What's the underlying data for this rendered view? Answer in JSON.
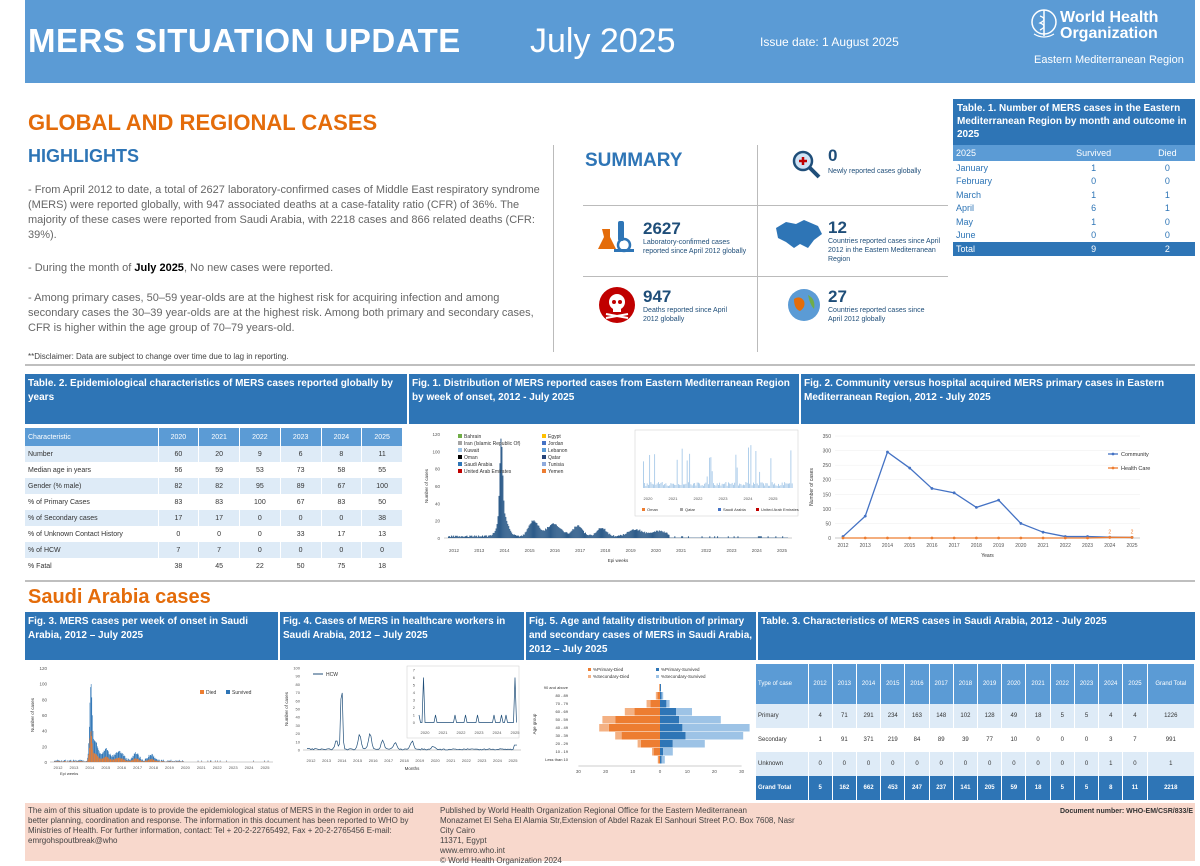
{
  "header": {
    "title": "MERS SITUATION UPDATE",
    "month": "July 2025",
    "issue_date": "Issue date: 1 August 2025",
    "org_line1": "World Health",
    "org_line2": "Organization",
    "region": "Eastern Mediterranean Region"
  },
  "highlights": {
    "section_title": "GLOBAL AND REGIONAL CASES",
    "title": "HIGHLIGHTS",
    "p1": "- From April 2012 to date, a total of 2627 laboratory-confirmed cases of Middle East respiratory syndrome (MERS) were reported globally, with 947 associated deaths at a case-fatality ratio (CFR) of 36%. The majority of these cases were reported from Saudi Arabia, with 2218 cases and 866 related deaths (CFR: 39%).",
    "p2_pre": "- During the month of ",
    "p2_bold": "July 2025",
    "p2_post": ", No new cases were reported.",
    "p3": "- Among primary cases, 50–59 year-olds are at the highest risk for acquiring infection and among secondary cases the 30–39 year-olds are at the highest risk. Among both primary and secondary cases, CFR is higher within the age group of 70–79 years-old.",
    "disclaimer": "**Disclaimer: Data are subject to change over time due to lag in reporting."
  },
  "summary": {
    "title": "SUMMARY",
    "stats": [
      {
        "value": "0",
        "label": "Newly reported cases globally"
      },
      {
        "value": "2627",
        "label": "Laboratory-confirmed cases reported since April 2012 globally"
      },
      {
        "value": "12",
        "label": "Countries reported cases since April 2012 in the Eastern Mediterranean Region"
      },
      {
        "value": "947",
        "label": "Deaths reported since April 2012 globally"
      },
      {
        "value": "27",
        "label": "Countries reported cases since April 2012 globally"
      }
    ]
  },
  "table1": {
    "title": "Table. 1. Number of MERS cases in the Eastern Mediterranean Region by month and outcome in 2025",
    "headers": [
      "2025",
      "Survived",
      "Died"
    ],
    "rows": [
      [
        "January",
        "1",
        "0"
      ],
      [
        "February",
        "0",
        "0"
      ],
      [
        "March",
        "1",
        "1"
      ],
      [
        "April",
        "6",
        "1"
      ],
      [
        "May",
        "1",
        "0"
      ],
      [
        "June",
        "0",
        "0"
      ]
    ],
    "total": [
      "Total",
      "9",
      "2"
    ]
  },
  "table2": {
    "title": "Table. 2. Epidemiological characteristics of MERS cases reported globally by years",
    "headers": [
      "Characteristic",
      "2020",
      "2021",
      "2022",
      "2023",
      "2024",
      "2025"
    ],
    "rows": [
      [
        "Number",
        "60",
        "20",
        "9",
        "6",
        "8",
        "11"
      ],
      [
        "Median age in years",
        "56",
        "59",
        "53",
        "73",
        "58",
        "55"
      ],
      [
        "Gender (% male)",
        "82",
        "82",
        "95",
        "89",
        "67",
        "100"
      ],
      [
        "% of Primary Cases",
        "83",
        "83",
        "100",
        "67",
        "83",
        "50"
      ],
      [
        "% of Secondary cases",
        "17",
        "17",
        "0",
        "0",
        "0",
        "38"
      ],
      [
        "% of Unknown Contact History",
        "0",
        "0",
        "0",
        "33",
        "17",
        "13"
      ],
      [
        "% of HCW",
        "7",
        "7",
        "0",
        "0",
        "0",
        "0"
      ],
      [
        "% Fatal",
        "38",
        "45",
        "22",
        "50",
        "75",
        "18"
      ]
    ]
  },
  "fig1": {
    "title": "Fig. 1. Distribution of MERS reported cases from Eastern Mediterranean Region by week of onset, 2012 - July 2025",
    "legend_left": [
      "Bahrain",
      "Iran (Islamic Republic Of)",
      "Kuwait",
      "Oman",
      "Saudi Arabia",
      "United Arab Emirates"
    ],
    "legend_right": [
      "Egypt",
      "Jordan",
      "Lebanon",
      "Qatar",
      "Tunisia",
      "Yemen"
    ],
    "inset_legend": [
      "Oman",
      "Qatar",
      "Saudi Arabia",
      "United Arab Emirates"
    ],
    "ylabel": "Number of cases",
    "xlabel": "Epi weeks",
    "yticks": [
      "120",
      "100",
      "80",
      "60",
      "40",
      "20",
      "0"
    ],
    "years": [
      "2012",
      "2013",
      "2014",
      "2015",
      "2016",
      "2017",
      "2018",
      "2019",
      "2020",
      "2021",
      "2022",
      "2023",
      "2024",
      "2025"
    ],
    "inset_years": [
      "2020",
      "2021",
      "2022",
      "2023",
      "2024",
      "2025"
    ]
  },
  "fig2": {
    "title": "Fig. 2. Community versus hospital acquired MERS primary cases in Eastern Mediterranean Region, 2012 - July 2025",
    "ylabel": "Number of cases",
    "xlabel": "Years",
    "legend": [
      "Community",
      "Health Care"
    ]
  },
  "saudi": {
    "title": "Saudi Arabia cases"
  },
  "fig3": {
    "title": "Fig. 3. MERS cases per week of onset in Saudi Arabia,  2012 – July 2025",
    "legend": [
      "Died",
      "Survived"
    ],
    "ylabel": "Number of cases",
    "xlabel": "Epi weeks",
    "yticks": [
      "120",
      "100",
      "80",
      "60",
      "40",
      "20",
      "0"
    ],
    "years": [
      "2012",
      "2013",
      "2014",
      "2015",
      "2016",
      "2017",
      "2018",
      "2019",
      "2020",
      "2021",
      "2022",
      "2023",
      "2024",
      "2025"
    ]
  },
  "fig4": {
    "title": "Fig. 4. Cases of MERS in healthcare workers in Saudi Arabia, 2012 – July 2025",
    "legend": "HCW",
    "ylabel": "Number of cases",
    "xlabel": "Months",
    "yticks": [
      "100",
      "90",
      "80",
      "70",
      "60",
      "50",
      "40",
      "30",
      "20",
      "10",
      "0"
    ],
    "inset_yticks": [
      "7",
      "6",
      "5",
      "4",
      "3",
      "2",
      "1",
      "0"
    ],
    "years": [
      "2012",
      "2013",
      "2014",
      "2015",
      "2016",
      "2017",
      "2018",
      "2019",
      "2020",
      "2021",
      "2022",
      "2023",
      "2024",
      "2025"
    ],
    "inset_years": [
      "2020",
      "2021",
      "2022",
      "2023",
      "2024",
      "2025"
    ]
  },
  "fig5": {
    "title": "Fig. 5. Age and fatality distribution of primary and secondary cases of MERS in Saudi Arabia, 2012 – July 2025",
    "legend": [
      "%Primary-Died",
      "%Primary-Survived",
      "%Secondary-Died",
      "%Secondary-Survived"
    ],
    "ylabel": "Age group",
    "xlabel": "%",
    "age_groups": [
      "90 and above",
      "80 - 89",
      "70 - 79",
      "60 - 69",
      "50 - 59",
      "40 - 49",
      "30 - 39",
      "20 - 29",
      "10 - 19",
      "Less than 10"
    ],
    "xticks": [
      "30",
      "20",
      "10",
      "0",
      "10",
      "20",
      "30"
    ]
  },
  "table3": {
    "title": "Table. 3. Characteristics of MERS cases in Saudi Arabia, 2012 - July 2025",
    "headers": [
      "Type of case",
      "2012",
      "2013",
      "2014",
      "2015",
      "2016",
      "2017",
      "2018",
      "2019",
      "2020",
      "2021",
      "2022",
      "2023",
      "2024",
      "2025",
      "Grand Total"
    ],
    "rows": [
      [
        "Primary",
        "4",
        "71",
        "291",
        "234",
        "163",
        "148",
        "102",
        "128",
        "49",
        "18",
        "5",
        "5",
        "4",
        "4",
        "1226"
      ],
      [
        "Secondary",
        "1",
        "91",
        "371",
        "219",
        "84",
        "89",
        "39",
        "77",
        "10",
        "0",
        "0",
        "0",
        "3",
        "7",
        "991"
      ],
      [
        "Unknown",
        "0",
        "0",
        "0",
        "0",
        "0",
        "0",
        "0",
        "0",
        "0",
        "0",
        "0",
        "0",
        "1",
        "0",
        "1"
      ]
    ],
    "total": [
      "Grand Total",
      "5",
      "162",
      "662",
      "453",
      "247",
      "237",
      "141",
      "205",
      "59",
      "18",
      "5",
      "5",
      "8",
      "11",
      "2218"
    ]
  },
  "footer": {
    "left": "The aim of this situation update is to provide the epidemiological status of MERS in the Region in order to aid better planning, coordination and response. The information in this document has been reported to WHO by Ministries of Health. For further information, contact: Tel + 20-2-22765492, Fax + 20-2-2765456 E-mail: emrgohspoutbreak@who",
    "mid1": "Published by World Health Organization Regional Office for the Eastern Mediterranean",
    "mid2": "Monazamet El Seha El Alamia Str,Extension of Abdel Razak El Sanhouri Street P.O. Box 7608, Nasr City Cairo",
    "mid3": "11371, Egypt",
    "mid4": "www.emro.who.int",
    "mid5": "© World Health Organization 2024",
    "doc": "Document number: WHO-EM/CSR/833/E"
  },
  "chart_data": [
    {
      "type": "line",
      "title": "Fig. 2. Community versus hospital acquired MERS primary cases in Eastern Mediterranean Region, 2012 - July 2025",
      "xlabel": "Years",
      "ylabel": "Number of cases",
      "ylim": [
        0,
        350
      ],
      "yticks": [
        0,
        50,
        100,
        150,
        200,
        250,
        300,
        350
      ],
      "x": [
        "2012",
        "2013",
        "2014",
        "2015",
        "2016",
        "2017",
        "2018",
        "2019",
        "2020",
        "2021",
        "2022",
        "2023",
        "2024",
        "2025"
      ],
      "series": [
        {
          "name": "Community",
          "values": [
            5,
            75,
            295,
            240,
            170,
            155,
            105,
            130,
            50,
            20,
            5,
            5,
            3,
            2
          ],
          "color": "#4472c4"
        },
        {
          "name": "Health Care",
          "values": [
            0,
            0,
            0,
            0,
            0,
            0,
            0,
            0,
            0,
            0,
            0,
            0,
            2,
            2
          ],
          "color": "#ed7d31"
        }
      ],
      "data_labels": [
        "2",
        "2"
      ],
      "legend": "right"
    }
  ],
  "colors": {
    "header_blue": "#5b9bd5",
    "dark_blue": "#2e75b6",
    "orange": "#e46c0a",
    "footer_pink": "#f8d8cc"
  }
}
